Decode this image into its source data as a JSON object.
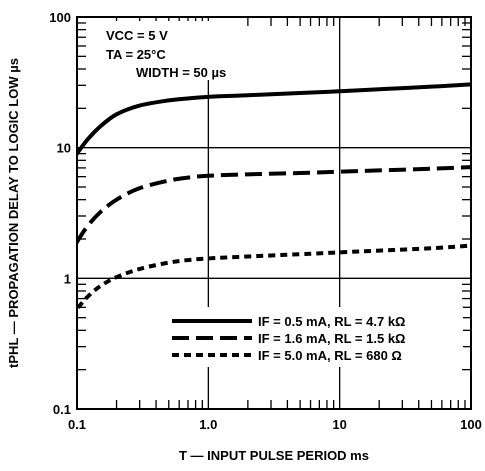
{
  "chart_data": {
    "type": "line",
    "title": "",
    "xlabel": "T — INPUT PULSE PERIOD ms",
    "ylabel": "tPHL — PROPAGATION DELAY TO LOGIC LOW µs",
    "x_scale": "log",
    "y_scale": "log",
    "xlim": [
      0.1,
      100
    ],
    "ylim": [
      0.1,
      100
    ],
    "grid": true,
    "x_tick_labels": [
      "0.1",
      "1.0",
      "10",
      "100"
    ],
    "y_tick_labels": [
      "0.1",
      "1",
      "10",
      "100"
    ],
    "conditions": [
      "VCC = 5 V",
      "TA = 25°C",
      "WIDTH = 50 µs"
    ],
    "legend_position": "bottom-right",
    "series": [
      {
        "name": "IF = 0.5 mA, RL = 4.7 kΩ",
        "line_style": "solid",
        "x": [
          0.08,
          0.1,
          0.12,
          0.15,
          0.2,
          0.3,
          0.5,
          0.7,
          1.0,
          2,
          5,
          10,
          20,
          50,
          100
        ],
        "y": [
          6.5,
          9.0,
          11.5,
          14.5,
          18.0,
          21.0,
          23.0,
          23.8,
          24.5,
          25.2,
          26.2,
          27.0,
          28.0,
          29.3,
          30.5
        ]
      },
      {
        "name": "IF = 1.6 mA, RL = 1.5 kΩ",
        "line_style": "long-dash",
        "x": [
          0.08,
          0.1,
          0.12,
          0.15,
          0.2,
          0.3,
          0.5,
          0.7,
          1.0,
          2,
          5,
          10,
          20,
          50,
          100
        ],
        "y": [
          1.3,
          1.9,
          2.5,
          3.2,
          4.0,
          4.9,
          5.6,
          5.9,
          6.1,
          6.25,
          6.4,
          6.55,
          6.7,
          6.9,
          7.1
        ]
      },
      {
        "name": "IF = 5.0 mA, RL = 680 Ω",
        "line_style": "short-dash",
        "x": [
          0.08,
          0.1,
          0.12,
          0.15,
          0.2,
          0.3,
          0.5,
          0.7,
          1.0,
          2,
          5,
          10,
          20,
          50,
          100
        ],
        "y": [
          0.42,
          0.58,
          0.72,
          0.87,
          1.02,
          1.18,
          1.32,
          1.38,
          1.42,
          1.47,
          1.53,
          1.58,
          1.63,
          1.7,
          1.78
        ]
      }
    ]
  }
}
